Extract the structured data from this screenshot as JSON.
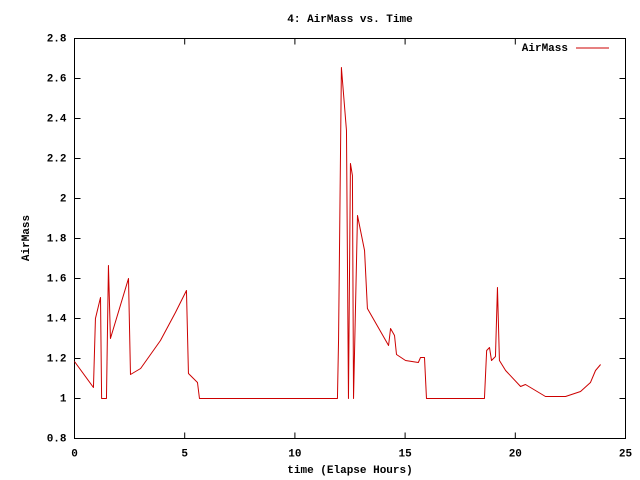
{
  "chart_data": {
    "type": "line",
    "title": "4: AirMass vs. Time",
    "xlabel": "time (Elapse Hours)",
    "ylabel": "AirMass",
    "xlim": [
      0,
      25
    ],
    "xticks": [
      0,
      5,
      10,
      15,
      20,
      25
    ],
    "ylim": [
      0.8,
      2.8
    ],
    "yticks": [
      0.8,
      1,
      1.2,
      1.4,
      1.6,
      1.8,
      2,
      2.2,
      2.4,
      2.6,
      2.8
    ],
    "grid": false,
    "legend": "upper right",
    "series": [
      {
        "name": "AirMass",
        "color": "#cc0000",
        "x": [
          0,
          0.86,
          0.95,
          1.18,
          1.23,
          1.45,
          1.54,
          1.63,
          2.45,
          2.54,
          3.0,
          3.9,
          4.58,
          5.08,
          5.17,
          5.58,
          5.67,
          11.93,
          11.98,
          12.11,
          12.34,
          12.43,
          12.52,
          12.61,
          12.66,
          12.84,
          13.16,
          13.29,
          14.25,
          14.34,
          14.52,
          14.61,
          15.02,
          15.6,
          15.7,
          15.88,
          15.97,
          18.6,
          18.7,
          18.83,
          18.92,
          19.1,
          19.19,
          19.28,
          19.56,
          20.24,
          20.46,
          21.37,
          21.82,
          22.28,
          22.96,
          23.41,
          23.64,
          23.87
        ],
        "values": [
          1.185,
          1.055,
          1.4,
          1.505,
          1.0,
          1.0,
          1.665,
          1.3,
          1.6,
          1.12,
          1.15,
          1.29,
          1.43,
          1.54,
          1.125,
          1.08,
          1.0,
          1.0,
          1.29,
          2.655,
          2.34,
          1.0,
          2.175,
          2.115,
          1.0,
          1.915,
          1.74,
          1.45,
          1.265,
          1.35,
          1.315,
          1.22,
          1.19,
          1.18,
          1.205,
          1.205,
          1.0,
          1.0,
          1.24,
          1.255,
          1.19,
          1.21,
          1.555,
          1.19,
          1.14,
          1.06,
          1.07,
          1.01,
          1.01,
          1.01,
          1.035,
          1.08,
          1.14,
          1.17
        ]
      }
    ]
  }
}
